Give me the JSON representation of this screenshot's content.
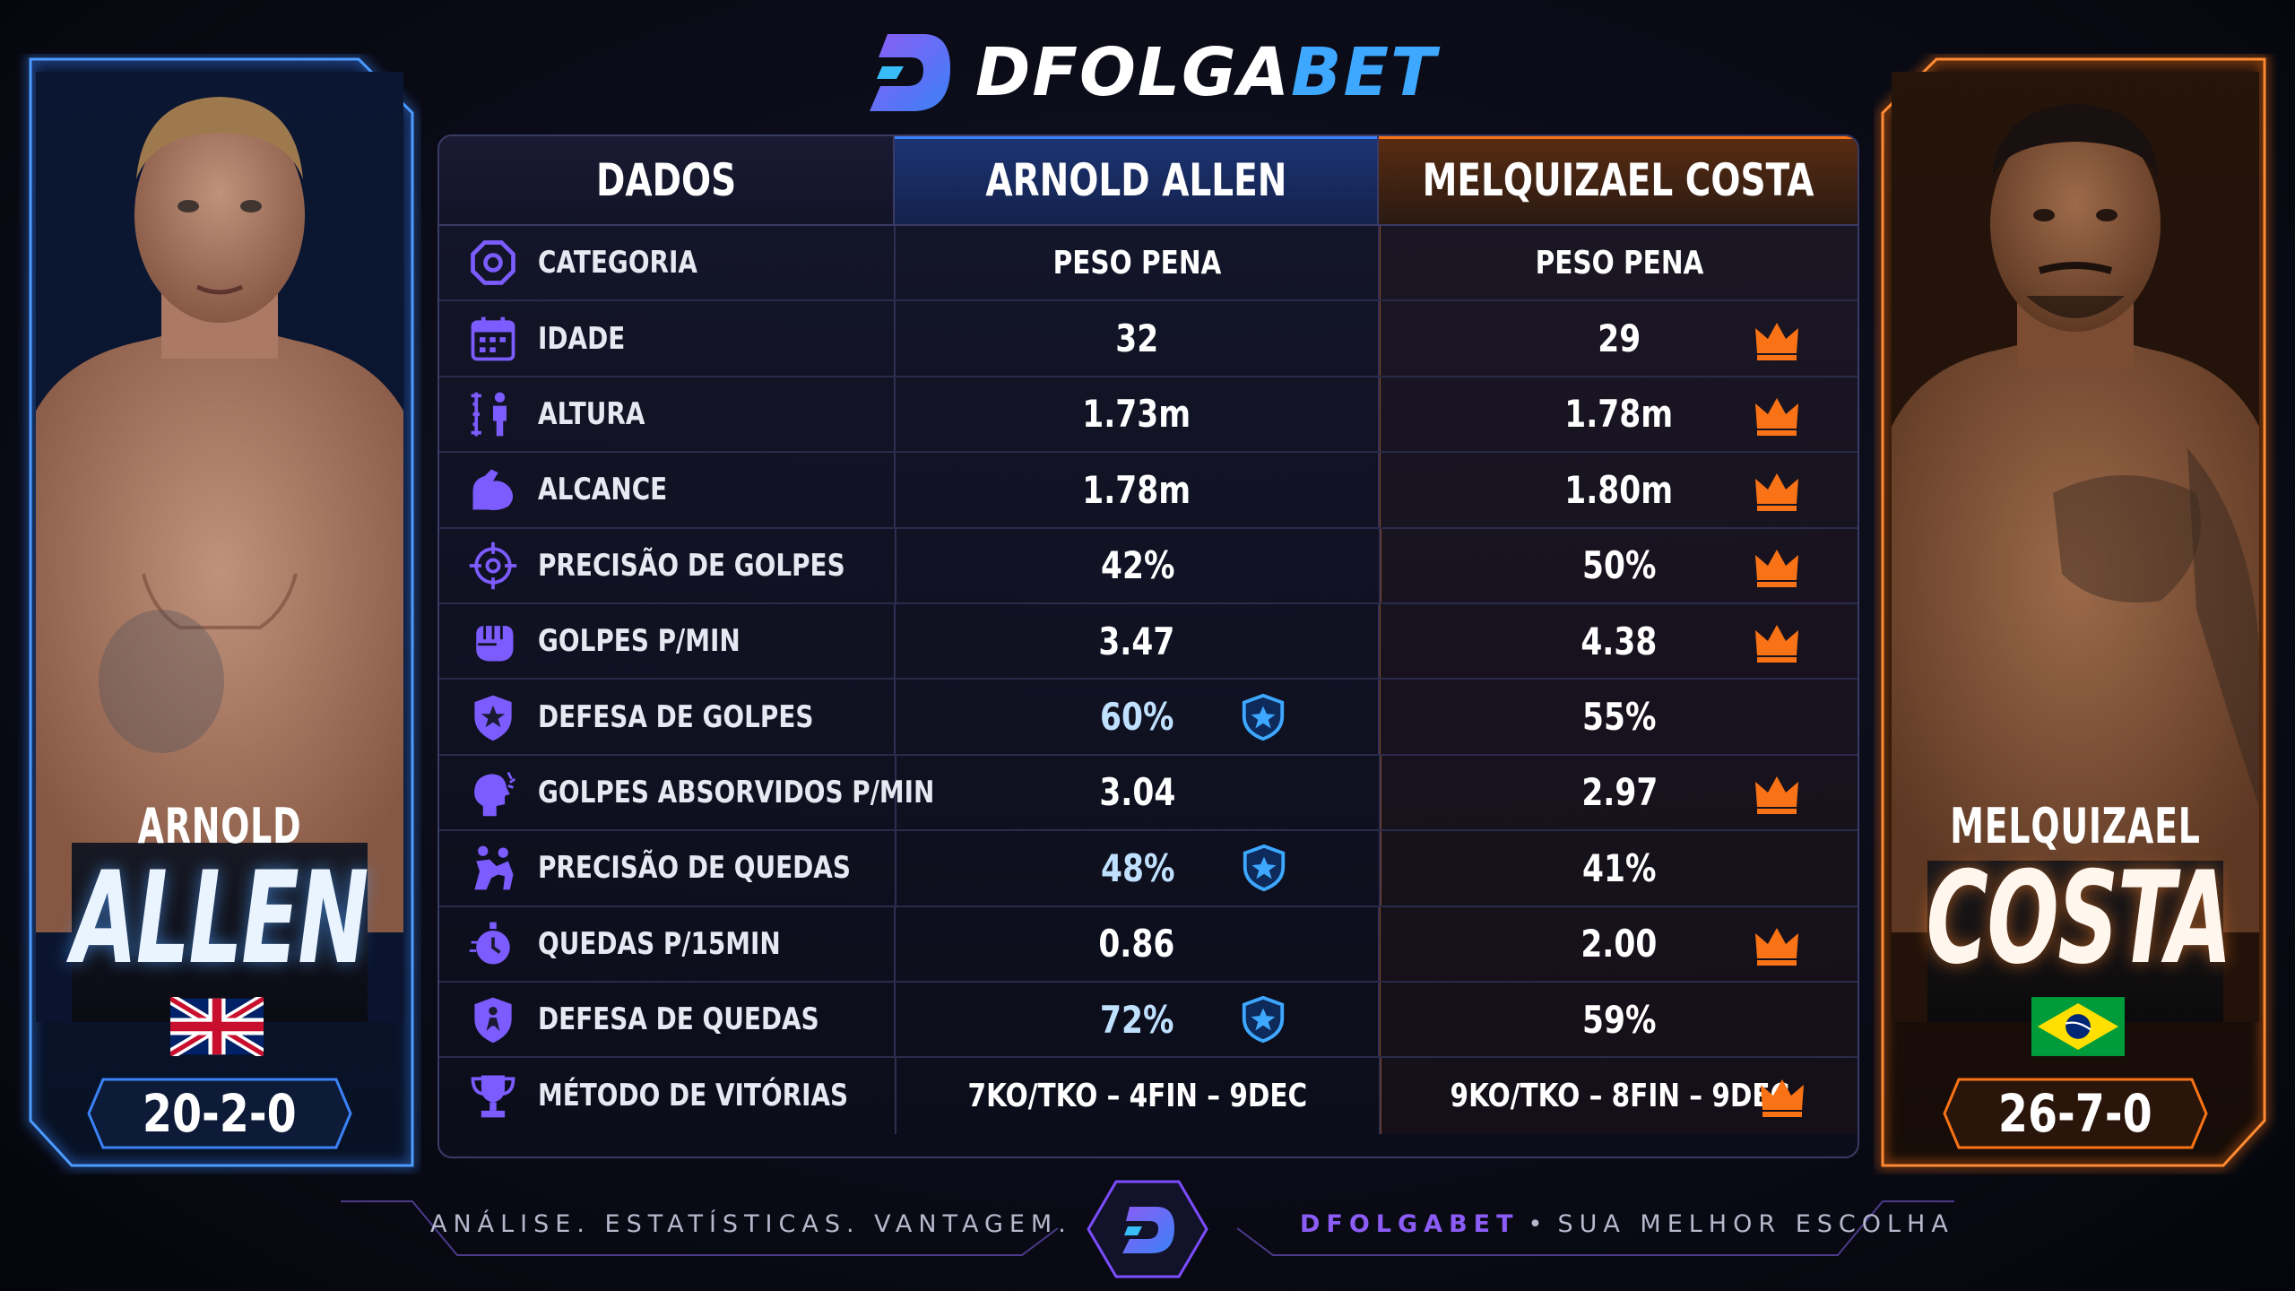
{
  "brand": {
    "part1": "DFOLGA",
    "part2": "BET"
  },
  "fighters": {
    "left": {
      "first": "ARNOLD",
      "last": "ALLEN",
      "record": "20-2-0",
      "flag": "uk-flag",
      "accent": "#3b82f6"
    },
    "right": {
      "first": "MELQUIZAEL",
      "last": "COSTA",
      "record": "26-7-0",
      "flag": "brazil-flag",
      "accent": "#f97316"
    }
  },
  "table": {
    "headers": [
      "DADOS",
      "ARNOLD ALLEN",
      "MELQUIZAEL COSTA"
    ],
    "rows": [
      {
        "icon": "octagon-icon",
        "label": "CATEGORIA",
        "a": "PESO PENA",
        "b": "PESO PENA",
        "winner": ""
      },
      {
        "icon": "calendar-icon",
        "label": "IDADE",
        "a": "32",
        "b": "29",
        "winner": "b"
      },
      {
        "icon": "height-icon",
        "label": "ALTURA",
        "a": "1.73m",
        "b": "1.78m",
        "winner": "b"
      },
      {
        "icon": "arm-icon",
        "label": "ALCANCE",
        "a": "1.78m",
        "b": "1.80m",
        "winner": "b"
      },
      {
        "icon": "crosshair-icon",
        "label": "PRECISÃO DE GOLPES",
        "a": "42%",
        "b": "50%",
        "winner": "b"
      },
      {
        "icon": "fist-icon",
        "label": "GOLPES P/MIN",
        "a": "3.47",
        "b": "4.38",
        "winner": "b"
      },
      {
        "icon": "shield-icon",
        "label": "DEFESA DE GOLPES",
        "a": "60%",
        "b": "55%",
        "winner": "a"
      },
      {
        "icon": "head-impact-icon",
        "label": "GOLPES ABSORVIDOS P/MIN",
        "a": "3.04",
        "b": "2.97",
        "winner": "b"
      },
      {
        "icon": "wrestling-icon",
        "label": "PRECISÃO DE QUEDAS",
        "a": "48%",
        "b": "41%",
        "winner": "a"
      },
      {
        "icon": "stopwatch-icon",
        "label": "QUEDAS P/15MIN",
        "a": "0.86",
        "b": "2.00",
        "winner": "b"
      },
      {
        "icon": "shield-person-icon",
        "label": "DEFESA DE QUEDAS",
        "a": "72%",
        "b": "59%",
        "winner": "a"
      },
      {
        "icon": "trophy-icon",
        "label": "MÉTODO DE VITÓRIAS",
        "a": "7KO/TKO – 4FIN – 9DEC",
        "b": "9KO/TKO – 8FIN – 9DEC",
        "winner": "b"
      }
    ]
  },
  "footer": {
    "left": "ANÁLISE. ESTATÍSTICAS. VANTAGEM.",
    "right_brand": "DFOLGABET",
    "right_sep": "•",
    "right_text": "SUA MELHOR ESCOLHA"
  }
}
